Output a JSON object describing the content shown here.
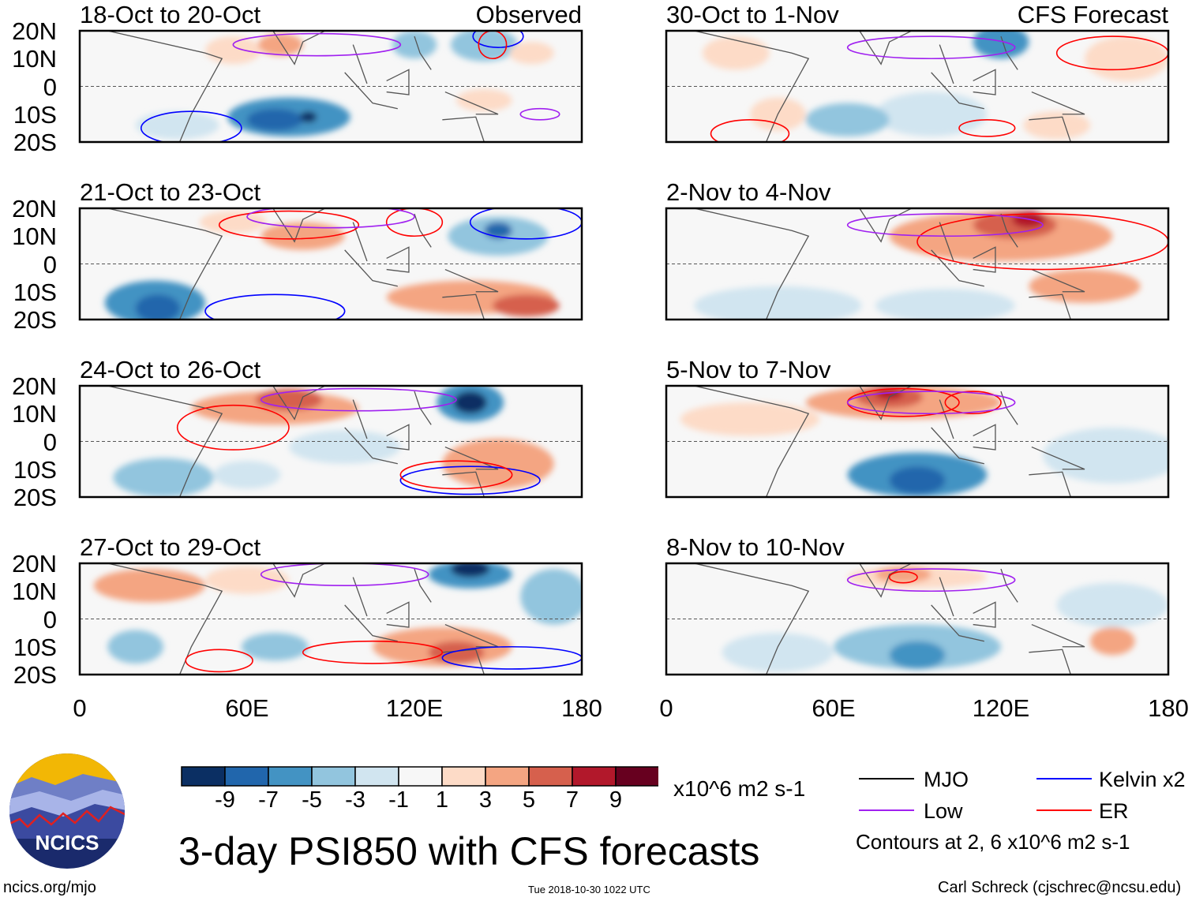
{
  "colors": {
    "levels": [
      "#0b2f63",
      "#2166ac",
      "#4393c3",
      "#92c5de",
      "#d1e5f0",
      "#f7f7f7",
      "#fddbc7",
      "#f4a582",
      "#d6604d",
      "#b2182b",
      "#67001f"
    ],
    "contours": {
      "MJO": "#000000",
      "Kelvin": "#0000ff",
      "Low": "#a020f0",
      "ER": "#ff0000"
    }
  },
  "y_ticks": [
    "20N",
    "10N",
    "0",
    "10S",
    "20S"
  ],
  "x_ticks": [
    "0",
    "60E",
    "120E",
    "180"
  ],
  "panels": [
    {
      "title": "18-Oct to 20-Oct",
      "tag": "Observed",
      "col": 0,
      "row": 0,
      "blobs": [
        [
          75,
          -11,
          22,
          7,
          2
        ],
        [
          70,
          -12,
          10,
          4,
          1
        ],
        [
          82,
          -11,
          3,
          2,
          0
        ],
        [
          145,
          15,
          12,
          6,
          3
        ],
        [
          120,
          15,
          8,
          5,
          3
        ],
        [
          35,
          -14,
          15,
          5,
          4
        ],
        [
          55,
          13,
          10,
          5,
          6
        ],
        [
          72,
          15,
          8,
          4,
          7
        ],
        [
          162,
          12,
          8,
          4,
          6
        ],
        [
          145,
          -5,
          10,
          4,
          6
        ]
      ],
      "lines": [
        [
          40,
          -15,
          18,
          6,
          "Kelvin"
        ],
        [
          150,
          18,
          9,
          4,
          "Kelvin"
        ],
        [
          85,
          15,
          30,
          4,
          "Low"
        ],
        [
          165,
          -10,
          7,
          2,
          "Low"
        ],
        [
          148,
          15,
          5,
          5,
          "ER"
        ]
      ]
    },
    {
      "title": "30-Oct to 1-Nov",
      "tag": "CFS Forecast",
      "col": 1,
      "row": 0,
      "blobs": [
        [
          120,
          18,
          4,
          3,
          0
        ],
        [
          120,
          16,
          10,
          6,
          2
        ],
        [
          95,
          -10,
          20,
          8,
          4
        ],
        [
          65,
          -12,
          15,
          6,
          3
        ],
        [
          25,
          12,
          12,
          6,
          6
        ],
        [
          165,
          10,
          15,
          8,
          6
        ],
        [
          40,
          -10,
          10,
          6,
          6
        ],
        [
          140,
          -14,
          12,
          5,
          6
        ]
      ],
      "lines": [
        [
          30,
          -17,
          14,
          5,
          "ER"
        ],
        [
          115,
          -15,
          10,
          3,
          "ER"
        ],
        [
          160,
          12,
          20,
          6,
          "ER"
        ],
        [
          95,
          14,
          30,
          4,
          "Low"
        ]
      ]
    },
    {
      "title": "21-Oct to 23-Oct",
      "tag": "",
      "col": 0,
      "row": 1,
      "blobs": [
        [
          27,
          -14,
          18,
          8,
          2
        ],
        [
          28,
          -16,
          8,
          5,
          1
        ],
        [
          150,
          10,
          18,
          7,
          3
        ],
        [
          150,
          12,
          5,
          3,
          1
        ],
        [
          80,
          10,
          15,
          5,
          7
        ],
        [
          140,
          -12,
          30,
          6,
          7
        ],
        [
          160,
          -15,
          12,
          4,
          8
        ],
        [
          55,
          15,
          12,
          4,
          6
        ]
      ],
      "lines": [
        [
          70,
          -17,
          25,
          6,
          "Kelvin"
        ],
        [
          160,
          15,
          20,
          6,
          "Kelvin"
        ],
        [
          75,
          14,
          25,
          5,
          "ER"
        ],
        [
          120,
          15,
          10,
          5,
          "ER"
        ],
        [
          90,
          17,
          30,
          4,
          "Low"
        ]
      ]
    },
    {
      "title": "2-Nov to 4-Nov",
      "tag": "",
      "col": 1,
      "row": 1,
      "blobs": [
        [
          120,
          10,
          40,
          9,
          7
        ],
        [
          125,
          14,
          15,
          5,
          8
        ],
        [
          130,
          16,
          6,
          3,
          9
        ],
        [
          40,
          -15,
          30,
          7,
          4
        ],
        [
          100,
          -15,
          25,
          6,
          4
        ],
        [
          150,
          -8,
          20,
          6,
          7
        ]
      ],
      "lines": [
        [
          135,
          8,
          45,
          10,
          "ER"
        ],
        [
          100,
          14,
          35,
          4,
          "Low"
        ]
      ]
    },
    {
      "title": "24-Oct to 26-Oct",
      "tag": "",
      "col": 0,
      "row": 2,
      "blobs": [
        [
          140,
          14,
          12,
          7,
          2
        ],
        [
          140,
          14,
          6,
          4,
          0
        ],
        [
          30,
          -13,
          18,
          7,
          3
        ],
        [
          70,
          12,
          30,
          6,
          7
        ],
        [
          75,
          15,
          12,
          4,
          8
        ],
        [
          150,
          -8,
          20,
          9,
          7
        ],
        [
          60,
          -12,
          12,
          5,
          4
        ],
        [
          95,
          -2,
          20,
          6,
          4
        ]
      ],
      "lines": [
        [
          140,
          -14,
          25,
          5,
          "Kelvin"
        ],
        [
          55,
          5,
          20,
          8,
          "ER"
        ],
        [
          135,
          -12,
          20,
          5,
          "ER"
        ],
        [
          100,
          15,
          35,
          4,
          "Low"
        ]
      ]
    },
    {
      "title": "5-Nov to 7-Nov",
      "tag": "",
      "col": 1,
      "row": 2,
      "blobs": [
        [
          85,
          14,
          35,
          6,
          7
        ],
        [
          80,
          16,
          12,
          4,
          8
        ],
        [
          80,
          17,
          5,
          2,
          9
        ],
        [
          90,
          -12,
          25,
          8,
          2
        ],
        [
          90,
          -14,
          10,
          5,
          1
        ],
        [
          160,
          -5,
          25,
          10,
          4
        ],
        [
          30,
          8,
          25,
          6,
          6
        ]
      ],
      "lines": [
        [
          85,
          14,
          20,
          5,
          "ER"
        ],
        [
          110,
          14,
          10,
          4,
          "ER"
        ],
        [
          95,
          14,
          30,
          4,
          "Low"
        ]
      ]
    },
    {
      "title": "27-Oct to 29-Oct",
      "tag": "",
      "col": 0,
      "row": 3,
      "blobs": [
        [
          140,
          16,
          15,
          5,
          2
        ],
        [
          140,
          18,
          7,
          3,
          0
        ],
        [
          170,
          8,
          12,
          10,
          3
        ],
        [
          130,
          -10,
          25,
          7,
          7
        ],
        [
          135,
          -12,
          10,
          4,
          8
        ],
        [
          25,
          12,
          20,
          6,
          7
        ],
        [
          60,
          14,
          15,
          5,
          6
        ],
        [
          70,
          -10,
          12,
          5,
          3
        ],
        [
          20,
          -10,
          10,
          6,
          3
        ]
      ],
      "lines": [
        [
          155,
          -14,
          25,
          4,
          "Kelvin"
        ],
        [
          105,
          -12,
          25,
          4,
          "ER"
        ],
        [
          50,
          -15,
          12,
          4,
          "ER"
        ],
        [
          95,
          16,
          30,
          4,
          "Low"
        ]
      ]
    },
    {
      "title": "8-Nov to 10-Nov",
      "tag": "",
      "col": 1,
      "row": 3,
      "blobs": [
        [
          90,
          -10,
          30,
          8,
          3
        ],
        [
          90,
          -13,
          10,
          5,
          2
        ],
        [
          40,
          -12,
          20,
          7,
          4
        ],
        [
          160,
          5,
          20,
          8,
          4
        ],
        [
          160,
          -8,
          8,
          5,
          7
        ],
        [
          90,
          15,
          25,
          4,
          6
        ],
        [
          85,
          16,
          10,
          3,
          7
        ]
      ],
      "lines": [
        [
          95,
          14,
          30,
          4,
          "Low"
        ],
        [
          85,
          15,
          5,
          2,
          "ER"
        ]
      ]
    }
  ],
  "colorbar": {
    "ticks": [
      "-9",
      "-7",
      "-5",
      "-3",
      "-1",
      "1",
      "3",
      "5",
      "7",
      "9"
    ],
    "units": "x10^6 m2 s-1"
  },
  "title": "3-day PSI850 with CFS forecasts",
  "timestamp": "Tue 2018-10-30 1022 UTC",
  "legend": {
    "mjo": "MJO",
    "kelvin": "Kelvin x2",
    "low": "Low",
    "er": "ER",
    "note": "Contours at 2, 6 x10^6 m2 s-1"
  },
  "footer": {
    "url": "ncics.org/mjo",
    "credit": "Carl Schreck (cjschrec@ncsu.edu)"
  },
  "logo": {
    "text": "NCICS"
  }
}
